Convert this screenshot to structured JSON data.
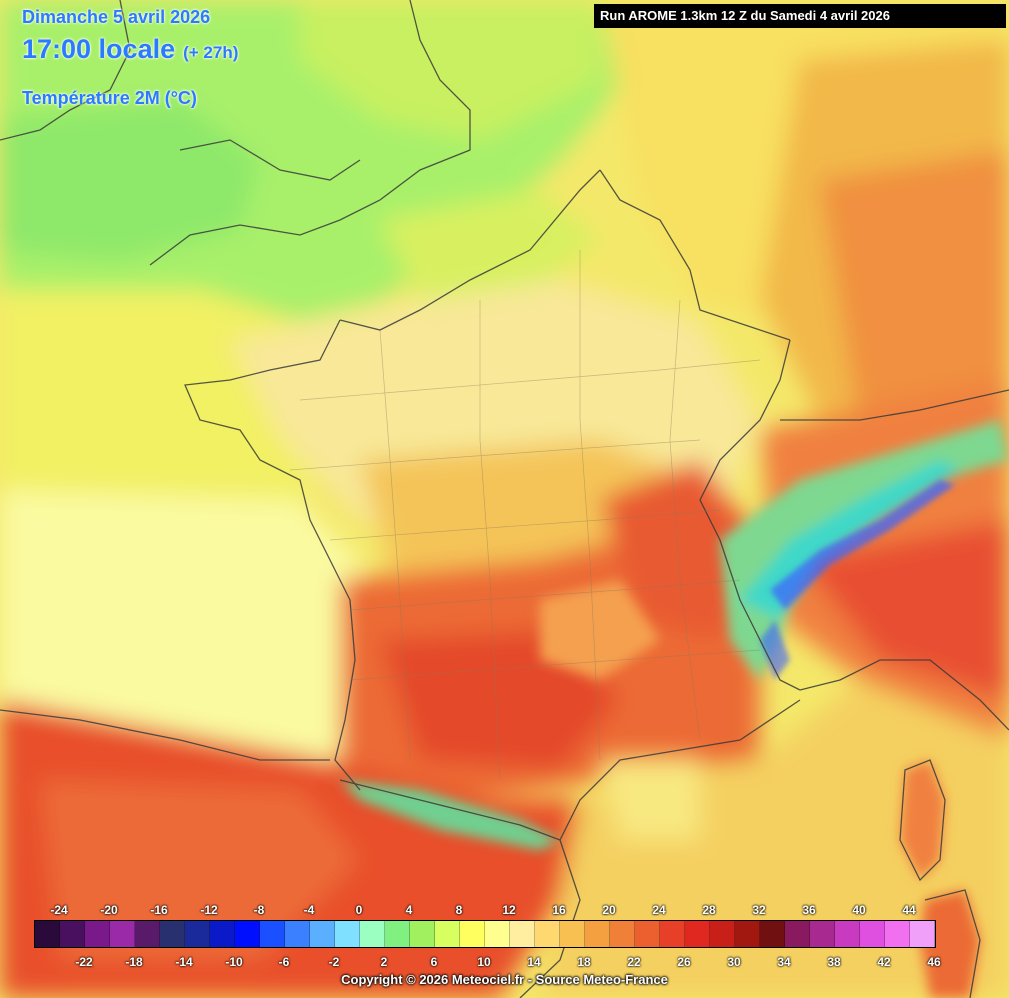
{
  "header": {
    "date": "Dimanche 5 avril 2026",
    "time": "17:00 locale",
    "offset": "(+ 27h)",
    "parameter": "Température 2M (°C)"
  },
  "run_info": "Run AROME 1.3km 12 Z du Samedi 4 avril 2026",
  "legend": {
    "top_labels": [
      "-24",
      "-20",
      "-16",
      "-12",
      "-8",
      "-4",
      "0",
      "4",
      "8",
      "12",
      "16",
      "20",
      "24",
      "28",
      "32",
      "36",
      "40",
      "44"
    ],
    "bottom_labels": [
      "-22",
      "-18",
      "-14",
      "-10",
      "-6",
      "-2",
      "2",
      "6",
      "10",
      "14",
      "18",
      "22",
      "26",
      "30",
      "34",
      "38",
      "42",
      "46"
    ],
    "colors": [
      "#2a0a3a",
      "#4a1060",
      "#7a1a8a",
      "#9a2aa8",
      "#5a1a6a",
      "#283070",
      "#1a2a9a",
      "#0a1ac8",
      "#0010ff",
      "#1a50ff",
      "#3a80ff",
      "#5ab0ff",
      "#80e0ff",
      "#9affc0",
      "#80f080",
      "#a0f060",
      "#d8ff60",
      "#ffff60",
      "#ffff90",
      "#ffeea0",
      "#ffd870",
      "#f8c050",
      "#f4a040",
      "#f08038",
      "#ec6030",
      "#e84028",
      "#e02820",
      "#c82018",
      "#a01810",
      "#701010",
      "#8a1a60",
      "#a82a90",
      "#c83ac0",
      "#e050e0",
      "#f070f0",
      "#f0a0f8"
    ]
  },
  "colors": {
    "sea_atlantic": "#f8f4a0",
    "sea_north": "#c8f060",
    "sea_med": "#f4d060",
    "land_warm": "#ec6a36",
    "land_hot": "#e04a2a",
    "land_mild": "#f4c050",
    "land_cool": "#f8e890",
    "alps_cold": "#60d8a0",
    "alps_snow": "#3a60ff",
    "uk_green": "#9ef070"
  },
  "copyright": "Copyright © 2026 Meteociel.fr - Source Meteo-France"
}
